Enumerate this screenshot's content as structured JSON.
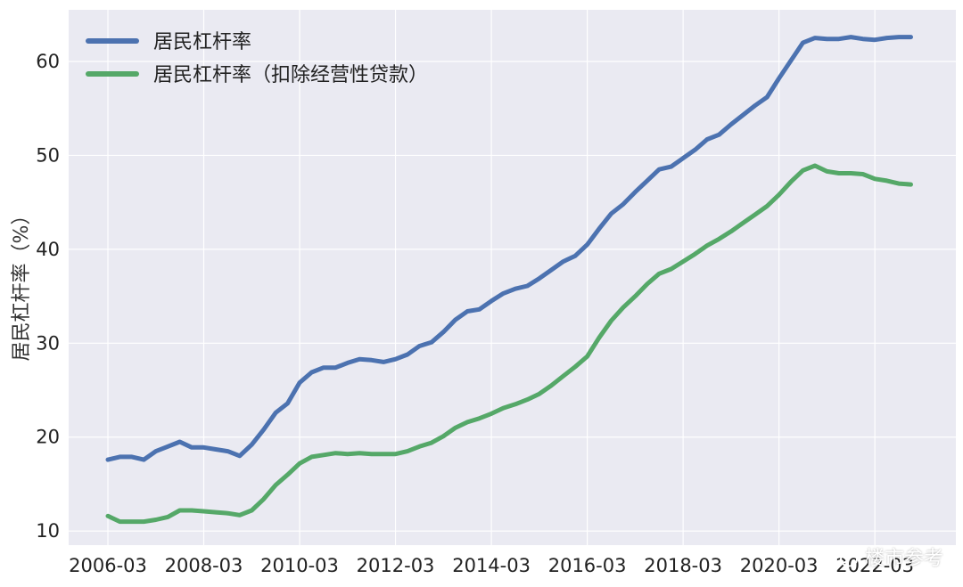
{
  "chart_data": {
    "type": "line",
    "xlabel": "",
    "ylabel": "居民杠杆率（%）",
    "ylim": [
      8.5,
      65.5
    ],
    "yticks": [
      10,
      20,
      30,
      40,
      50,
      60
    ],
    "xtick_labels": [
      "2006-03",
      "2008-03",
      "2010-03",
      "2012-03",
      "2014-03",
      "2016-03",
      "2018-03",
      "2020-03",
      "2022-03"
    ],
    "grid": true,
    "legend_position": "top-left",
    "x": [
      "2006-03",
      "2006-06",
      "2006-09",
      "2006-12",
      "2007-03",
      "2007-06",
      "2007-09",
      "2007-12",
      "2008-03",
      "2008-06",
      "2008-09",
      "2008-12",
      "2009-03",
      "2009-06",
      "2009-09",
      "2009-12",
      "2010-03",
      "2010-06",
      "2010-09",
      "2010-12",
      "2011-03",
      "2011-06",
      "2011-09",
      "2011-12",
      "2012-03",
      "2012-06",
      "2012-09",
      "2012-12",
      "2013-03",
      "2013-06",
      "2013-09",
      "2013-12",
      "2014-03",
      "2014-06",
      "2014-09",
      "2014-12",
      "2015-03",
      "2015-06",
      "2015-09",
      "2015-12",
      "2016-03",
      "2016-06",
      "2016-09",
      "2016-12",
      "2017-03",
      "2017-06",
      "2017-09",
      "2017-12",
      "2018-03",
      "2018-06",
      "2018-09",
      "2018-12",
      "2019-03",
      "2019-06",
      "2019-09",
      "2019-12",
      "2020-03",
      "2020-06",
      "2020-09",
      "2020-12",
      "2021-03",
      "2021-06",
      "2021-09",
      "2021-12",
      "2022-03",
      "2022-06",
      "2022-09",
      "2022-12"
    ],
    "series": [
      {
        "name": "居民杠杆率",
        "color": "#4c72b0",
        "values": [
          17.6,
          17.9,
          17.9,
          17.6,
          18.5,
          19.0,
          19.5,
          18.9,
          18.9,
          18.7,
          18.5,
          18.0,
          19.2,
          20.8,
          22.6,
          23.6,
          25.8,
          26.9,
          27.4,
          27.4,
          27.9,
          28.3,
          28.2,
          28.0,
          28.3,
          28.8,
          29.7,
          30.1,
          31.2,
          32.5,
          33.4,
          33.6,
          34.5,
          35.3,
          35.8,
          36.1,
          36.9,
          37.8,
          38.7,
          39.3,
          40.5,
          42.2,
          43.8,
          44.8,
          46.1,
          47.3,
          48.5,
          48.8,
          49.7,
          50.6,
          51.7,
          52.2,
          53.3,
          54.3,
          55.3,
          56.2,
          58.2,
          60.1,
          62.0,
          62.5,
          62.4,
          62.4,
          62.6,
          62.4,
          62.3,
          62.5,
          62.6,
          62.6
        ]
      },
      {
        "name": "居民杠杆率（扣除经营性贷款）",
        "color": "#55a868",
        "values": [
          11.6,
          11.0,
          11.0,
          11.0,
          11.2,
          11.5,
          12.2,
          12.2,
          12.1,
          12.0,
          11.9,
          11.7,
          12.2,
          13.4,
          14.9,
          16.0,
          17.2,
          17.9,
          18.1,
          18.3,
          18.2,
          18.3,
          18.2,
          18.2,
          18.2,
          18.5,
          19.0,
          19.4,
          20.1,
          21.0,
          21.6,
          22.0,
          22.5,
          23.1,
          23.5,
          24.0,
          24.6,
          25.5,
          26.5,
          27.5,
          28.6,
          30.6,
          32.4,
          33.8,
          35.0,
          36.3,
          37.4,
          37.9,
          38.7,
          39.5,
          40.4,
          41.1,
          41.9,
          42.8,
          43.7,
          44.6,
          45.8,
          47.2,
          48.4,
          48.9,
          48.3,
          48.1,
          48.1,
          48.0,
          47.5,
          47.3,
          47.0,
          46.9
        ]
      }
    ]
  },
  "watermark": {
    "text": "楼市参考",
    "icon": "wechat-logo-icon"
  },
  "colors": {
    "plot_background": "#eaeaf2",
    "grid": "#ffffff"
  }
}
